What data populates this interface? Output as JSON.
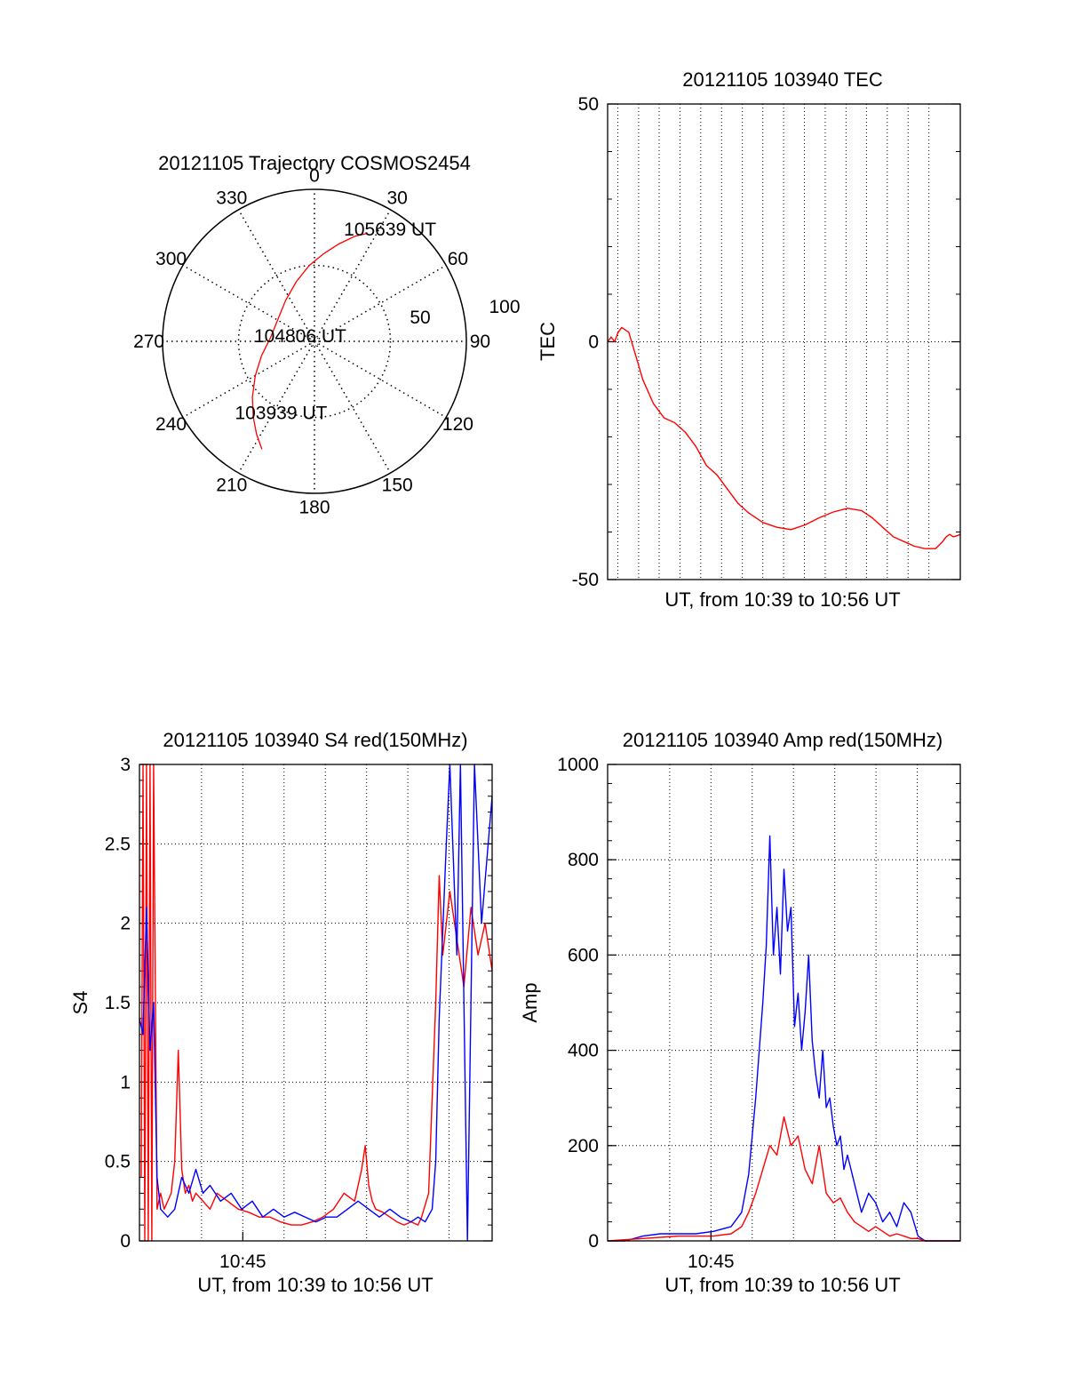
{
  "colors": {
    "red": "#ff0000",
    "blue": "#0000ff",
    "axis": "#000000",
    "grid": "#000000"
  },
  "chart_data": [
    {
      "id": "trajectory",
      "type": "polar",
      "title": "20121105 Trajectory COSMOS2454",
      "r_max": 100,
      "r_labels": [
        "50",
        "100"
      ],
      "r_rings": [
        50
      ],
      "angle_labels": [
        {
          "angle": 0,
          "label": "0"
        },
        {
          "angle": 30,
          "label": "30"
        },
        {
          "angle": 60,
          "label": "60"
        },
        {
          "angle": 90,
          "label": "90"
        },
        {
          "angle": 120,
          "label": "120"
        },
        {
          "angle": 150,
          "label": "150"
        },
        {
          "angle": 180,
          "label": "180"
        },
        {
          "angle": 210,
          "label": "210"
        },
        {
          "angle": 240,
          "label": "240"
        },
        {
          "angle": 270,
          "label": "270"
        },
        {
          "angle": 300,
          "label": "300"
        },
        {
          "angle": 330,
          "label": "330"
        }
      ],
      "track": [
        {
          "az": 206,
          "r": 79
        },
        {
          "az": 212,
          "r": 72
        },
        {
          "az": 219,
          "r": 64
        },
        {
          "az": 228,
          "r": 55
        },
        {
          "az": 240,
          "r": 45
        },
        {
          "az": 255,
          "r": 36
        },
        {
          "az": 275,
          "r": 29
        },
        {
          "az": 300,
          "r": 28
        },
        {
          "az": 325,
          "r": 33
        },
        {
          "az": 343,
          "r": 41
        },
        {
          "az": 356,
          "r": 50
        },
        {
          "az": 6,
          "r": 58
        },
        {
          "az": 14,
          "r": 66
        },
        {
          "az": 21,
          "r": 74
        },
        {
          "az": 26,
          "r": 79
        }
      ],
      "annotations": [
        {
          "text": "105639 UT",
          "az": 34,
          "r": 89
        },
        {
          "text": "104806 UT",
          "az": 290,
          "r": 10
        },
        {
          "text": "103939 UT",
          "az": 205,
          "r": 52
        }
      ]
    },
    {
      "id": "tec",
      "type": "line",
      "title": "20121105 103940 TEC",
      "xlabel": "UT, from 10:39 to 10:56 UT",
      "ylabel": "TEC",
      "ylim": [
        -50,
        50
      ],
      "yticks": [
        "50",
        "0",
        "-50"
      ],
      "xtick_labels": [],
      "series": [
        {
          "color": "red",
          "x": [
            0,
            0.01,
            0.02,
            0.03,
            0.04,
            0.06,
            0.08,
            0.1,
            0.13,
            0.16,
            0.19,
            0.22,
            0.25,
            0.28,
            0.31,
            0.34,
            0.37,
            0.4,
            0.44,
            0.48,
            0.52,
            0.56,
            0.6,
            0.64,
            0.68,
            0.72,
            0.75,
            0.78,
            0.81,
            0.84,
            0.87,
            0.9,
            0.93,
            0.95,
            0.96,
            0.97,
            0.98,
            0.99,
            1.0
          ],
          "y": [
            0,
            1,
            0,
            2,
            3,
            2,
            -3,
            -8,
            -13,
            -16,
            -17,
            -19,
            -22,
            -26,
            -28,
            -31,
            -34,
            -36,
            -38,
            -39,
            -39.5,
            -38.5,
            -37,
            -35.8,
            -35,
            -35.5,
            -37,
            -39,
            -41,
            -42,
            -43,
            -43.5,
            -43.5,
            -42,
            -41,
            -40.5,
            -41,
            -40.8,
            -40.5
          ]
        }
      ]
    },
    {
      "id": "s4",
      "type": "line",
      "title": "20121105 103940 S4 red(150MHz)",
      "xlabel": "UT, from 10:39 to 10:56 UT",
      "ylabel": "S4",
      "ylim": [
        0,
        3
      ],
      "yticks": [
        "3",
        "2.5",
        "2",
        "1.5",
        "1",
        "0.5",
        "0"
      ],
      "xtick_labels": [
        {
          "x": 0.293,
          "label": "10:45"
        }
      ],
      "series": [
        {
          "color": "red",
          "x": [
            0.005,
            0.01,
            0.015,
            0.02,
            0.025,
            0.03,
            0.035,
            0.04,
            0.05,
            0.06,
            0.07,
            0.08,
            0.09,
            0.1,
            0.11,
            0.12,
            0.13,
            0.14,
            0.15,
            0.16,
            0.18,
            0.2,
            0.22,
            0.25,
            0.28,
            0.31,
            0.34,
            0.37,
            0.4,
            0.43,
            0.46,
            0.49,
            0.52,
            0.55,
            0.58,
            0.61,
            0.63,
            0.64,
            0.65,
            0.66,
            0.67,
            0.69,
            0.71,
            0.73,
            0.75,
            0.77,
            0.79,
            0.8,
            0.82,
            0.84,
            0.85,
            0.86,
            0.88,
            0.9,
            0.92,
            0.94,
            0.96,
            0.98,
            1.0
          ],
          "y": [
            0.4,
            3.0,
            0.0,
            3.0,
            0.0,
            3.0,
            0.0,
            3.0,
            0.2,
            0.3,
            0.2,
            0.25,
            0.3,
            0.5,
            1.2,
            0.45,
            0.3,
            0.35,
            0.25,
            0.3,
            0.25,
            0.2,
            0.3,
            0.25,
            0.2,
            0.18,
            0.15,
            0.15,
            0.12,
            0.1,
            0.1,
            0.12,
            0.15,
            0.2,
            0.3,
            0.25,
            0.45,
            0.6,
            0.35,
            0.25,
            0.2,
            0.18,
            0.15,
            0.12,
            0.1,
            0.12,
            0.1,
            0.15,
            0.3,
            1.5,
            2.3,
            1.8,
            2.2,
            1.9,
            1.6,
            2.1,
            1.8,
            2.0,
            1.7
          ]
        },
        {
          "color": "blue",
          "x": [
            0.0,
            0.01,
            0.02,
            0.03,
            0.04,
            0.05,
            0.06,
            0.08,
            0.1,
            0.12,
            0.14,
            0.16,
            0.18,
            0.2,
            0.23,
            0.26,
            0.29,
            0.32,
            0.35,
            0.38,
            0.41,
            0.44,
            0.47,
            0.5,
            0.53,
            0.56,
            0.59,
            0.62,
            0.65,
            0.68,
            0.71,
            0.74,
            0.77,
            0.79,
            0.81,
            0.83,
            0.84,
            0.85,
            0.87,
            0.88,
            0.9,
            0.91,
            0.93,
            0.95,
            0.97,
            1.0
          ],
          "y": [
            1.4,
            1.3,
            2.1,
            1.2,
            1.5,
            0.4,
            0.2,
            0.15,
            0.2,
            0.4,
            0.3,
            0.45,
            0.3,
            0.35,
            0.25,
            0.3,
            0.2,
            0.25,
            0.15,
            0.2,
            0.15,
            0.18,
            0.15,
            0.12,
            0.15,
            0.15,
            0.2,
            0.25,
            0.2,
            0.15,
            0.2,
            0.15,
            0.12,
            0.15,
            0.12,
            0.2,
            0.5,
            1.4,
            2.5,
            3.0,
            1.8,
            3.0,
            0.0,
            3.0,
            2.0,
            2.8
          ]
        }
      ]
    },
    {
      "id": "amp",
      "type": "line",
      "title": "20121105 103940 Amp red(150MHz)",
      "xlabel": "UT, from 10:39 to 10:56 UT",
      "ylabel": "Amp",
      "ylim": [
        0,
        1000
      ],
      "yticks": [
        "1000",
        "800",
        "600",
        "400",
        "200",
        "0"
      ],
      "xtick_labels": [
        {
          "x": 0.293,
          "label": "10:45"
        }
      ],
      "series": [
        {
          "color": "blue",
          "x": [
            0,
            0.05,
            0.1,
            0.15,
            0.2,
            0.25,
            0.3,
            0.35,
            0.38,
            0.4,
            0.42,
            0.44,
            0.45,
            0.46,
            0.47,
            0.48,
            0.49,
            0.5,
            0.51,
            0.52,
            0.53,
            0.54,
            0.55,
            0.56,
            0.57,
            0.58,
            0.59,
            0.6,
            0.61,
            0.62,
            0.63,
            0.64,
            0.65,
            0.66,
            0.67,
            0.68,
            0.7,
            0.72,
            0.74,
            0.76,
            0.78,
            0.8,
            0.82,
            0.84,
            0.86,
            0.88,
            0.9,
            0.95,
            1.0
          ],
          "y": [
            0,
            0,
            10,
            15,
            15,
            15,
            20,
            30,
            60,
            140,
            300,
            500,
            620,
            850,
            600,
            700,
            560,
            780,
            650,
            700,
            450,
            520,
            400,
            480,
            600,
            420,
            350,
            300,
            400,
            280,
            300,
            240,
            200,
            220,
            150,
            180,
            120,
            60,
            100,
            80,
            40,
            60,
            30,
            80,
            60,
            10,
            0,
            0,
            0
          ]
        },
        {
          "color": "red",
          "x": [
            0,
            0.1,
            0.2,
            0.3,
            0.35,
            0.38,
            0.4,
            0.42,
            0.44,
            0.46,
            0.48,
            0.5,
            0.52,
            0.54,
            0.56,
            0.58,
            0.6,
            0.62,
            0.64,
            0.66,
            0.68,
            0.7,
            0.72,
            0.74,
            0.76,
            0.78,
            0.8,
            0.82,
            0.84,
            0.86,
            0.88,
            0.9,
            1.0
          ],
          "y": [
            0,
            5,
            10,
            10,
            15,
            30,
            60,
            100,
            150,
            200,
            180,
            260,
            200,
            220,
            150,
            120,
            200,
            100,
            80,
            90,
            60,
            40,
            30,
            20,
            30,
            20,
            10,
            15,
            10,
            5,
            5,
            0,
            0
          ]
        }
      ]
    }
  ]
}
